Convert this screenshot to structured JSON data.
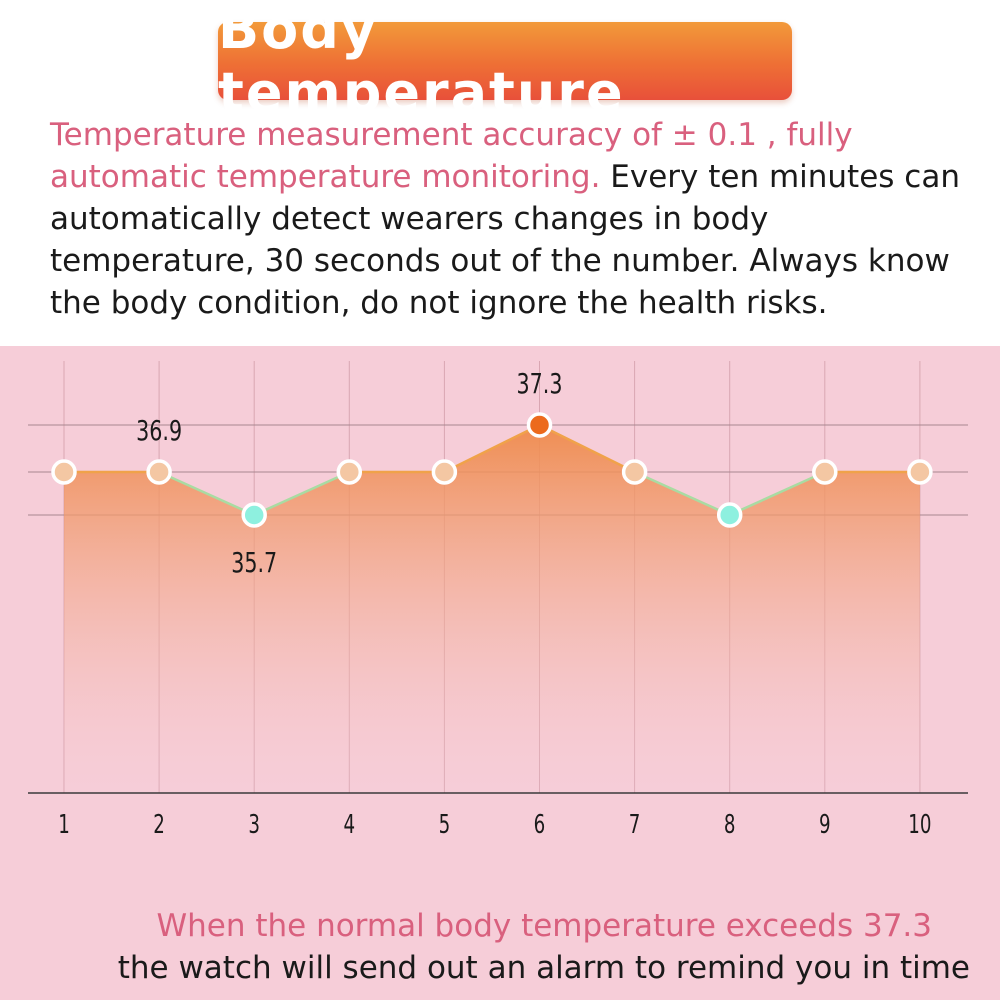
{
  "title": "Body temperature",
  "intro": {
    "highlight": "Temperature measurement accuracy of ± 0.1  , fully automatic temperature monitoring.",
    "body": " Every ten minutes can automatically detect wearers changes in body temperature, 30 seconds out of the number. Always know the body condition, do not ignore the health risks."
  },
  "footer": {
    "line1": "When the normal body temperature exceeds 37.3",
    "line2": "the watch will send out an alarm to remind you in time"
  },
  "colors": {
    "normal_point": "#f4c7a3",
    "low_point": "#8ef0df",
    "high_point": "#ec6a1c",
    "line": "#f0a24a",
    "fill_top": "#ef8a4a"
  },
  "chart_data": {
    "type": "area",
    "categories": [
      "1",
      "2",
      "3",
      "4",
      "5",
      "6",
      "7",
      "8",
      "9",
      "10"
    ],
    "values": [
      36.9,
      36.9,
      35.7,
      36.9,
      36.9,
      37.3,
      36.9,
      35.7,
      36.9,
      36.9
    ],
    "point_labels": [
      {
        "index": 1,
        "text": "36.9"
      },
      {
        "index": 2,
        "text": "35.7"
      },
      {
        "index": 5,
        "text": "37.3"
      }
    ],
    "reference_lines": [
      37.3,
      36.9,
      35.7
    ],
    "title": "",
    "xlabel": "",
    "ylabel": "",
    "grid": true
  }
}
